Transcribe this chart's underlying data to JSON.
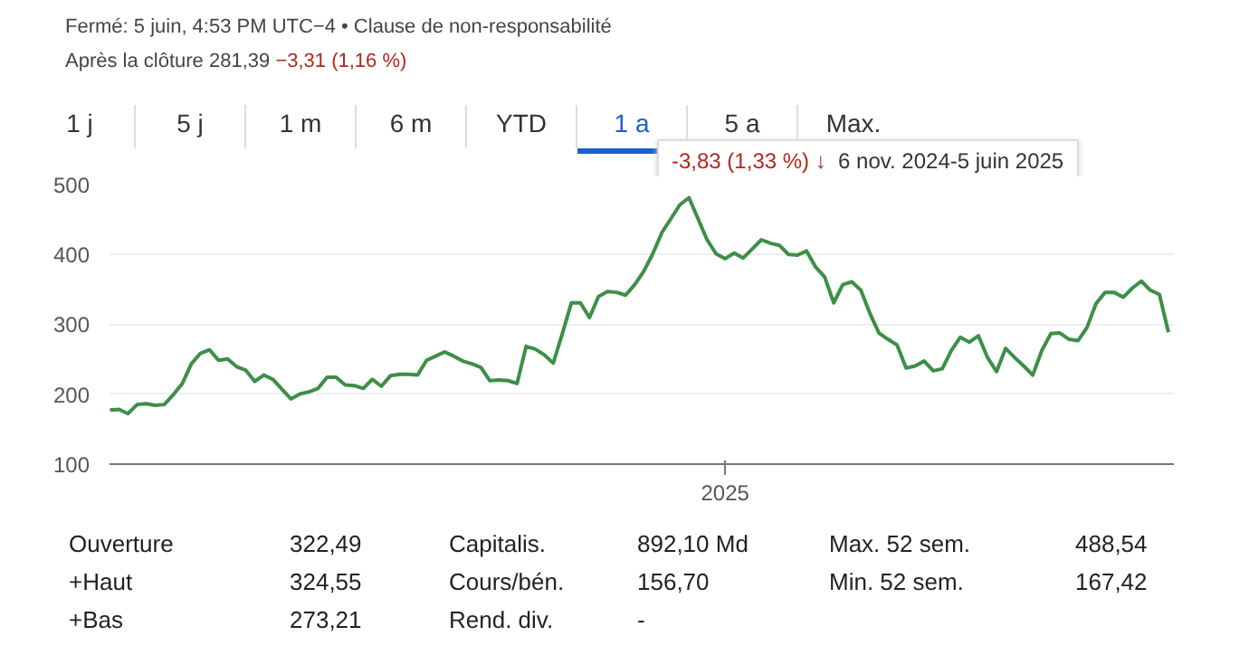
{
  "chart_data": {
    "type": "line",
    "annotations": [
      "Fermé: 5 juin, 4:53 PM UTC−4 • Clause de non-responsabilité",
      "Après la clôture 281,39",
      "−3,31 (1,16 %)",
      "1 j",
      "5 j",
      "1 m",
      "6 m",
      "YTD",
      "1 a",
      "5 a",
      "Max.",
      "-3,83 (1,33 %) ↓",
      "6 nov. 2024-5 juin 2025",
      "Ouverture",
      "322,49",
      "Capitalis.",
      "892,10 Md",
      "Max. 52 sem.",
      "488,54",
      "+Haut",
      "324,55",
      "Cours/bén.",
      "156,70",
      "Min. 52 sem.",
      "167,42",
      "+Bas",
      "273,21",
      "Rend. div.",
      "-"
    ],
    "categories": [
      null,
      null,
      null,
      null,
      null,
      null,
      null,
      null,
      null,
      null,
      null,
      null,
      null,
      null,
      null,
      null,
      null,
      null,
      null,
      null,
      null,
      null,
      null,
      null,
      null,
      null,
      null,
      null,
      null,
      null,
      null,
      null,
      null,
      null,
      null,
      null,
      null,
      null,
      null,
      null,
      null,
      null,
      null,
      null,
      null,
      null,
      null,
      null,
      null,
      null,
      null,
      null,
      null,
      null,
      null,
      null,
      null,
      null,
      null,
      null,
      null,
      null,
      null,
      null,
      null,
      null,
      null,
      null,
      "2025",
      null,
      null,
      null,
      null,
      null,
      null,
      null,
      null,
      null,
      null,
      null,
      null,
      null,
      null,
      null,
      null,
      null,
      null,
      null,
      null,
      null,
      null,
      null,
      null,
      null,
      null,
      null,
      null,
      null,
      null,
      null,
      null,
      null,
      null,
      null,
      null,
      null,
      null,
      null,
      null,
      null,
      null,
      null,
      null,
      null,
      null,
      null,
      null,
      null
    ],
    "series": [
      {
        "color": "#3d8f47",
        "values": [
          177,
          178,
          172,
          185,
          186,
          184,
          185,
          199,
          215,
          243,
          258,
          263,
          248,
          250,
          239,
          234,
          218,
          227,
          221,
          207,
          193,
          200,
          203,
          208,
          224,
          224,
          213,
          212,
          208,
          221,
          211,
          226,
          228,
          228,
          227,
          248,
          254,
          260,
          254,
          247,
          243,
          238,
          219,
          220,
          219,
          215,
          268,
          264,
          256,
          244,
          286,
          330,
          330,
          309,
          339,
          346,
          345,
          341,
          356,
          375,
          400,
          430,
          450,
          470,
          480,
          450,
          420,
          400,
          393,
          401,
          394,
          407,
          420,
          415,
          412,
          399,
          398,
          404,
          381,
          367,
          330,
          356,
          360,
          348,
          315,
          287,
          278,
          270,
          237,
          240,
          247,
          233,
          236,
          262,
          281,
          274,
          283,
          252,
          232,
          265,
          252,
          240,
          227,
          262,
          286,
          287,
          278,
          276,
          295,
          329,
          345,
          345,
          338,
          351,
          361,
          348,
          342,
          288
        ]
      }
    ],
    "ylim": [
      100,
      500
    ],
    "yticks": [
      100,
      200,
      300,
      400,
      500
    ],
    "grid": "y",
    "line_style": "solid",
    "marker": "none"
  }
}
